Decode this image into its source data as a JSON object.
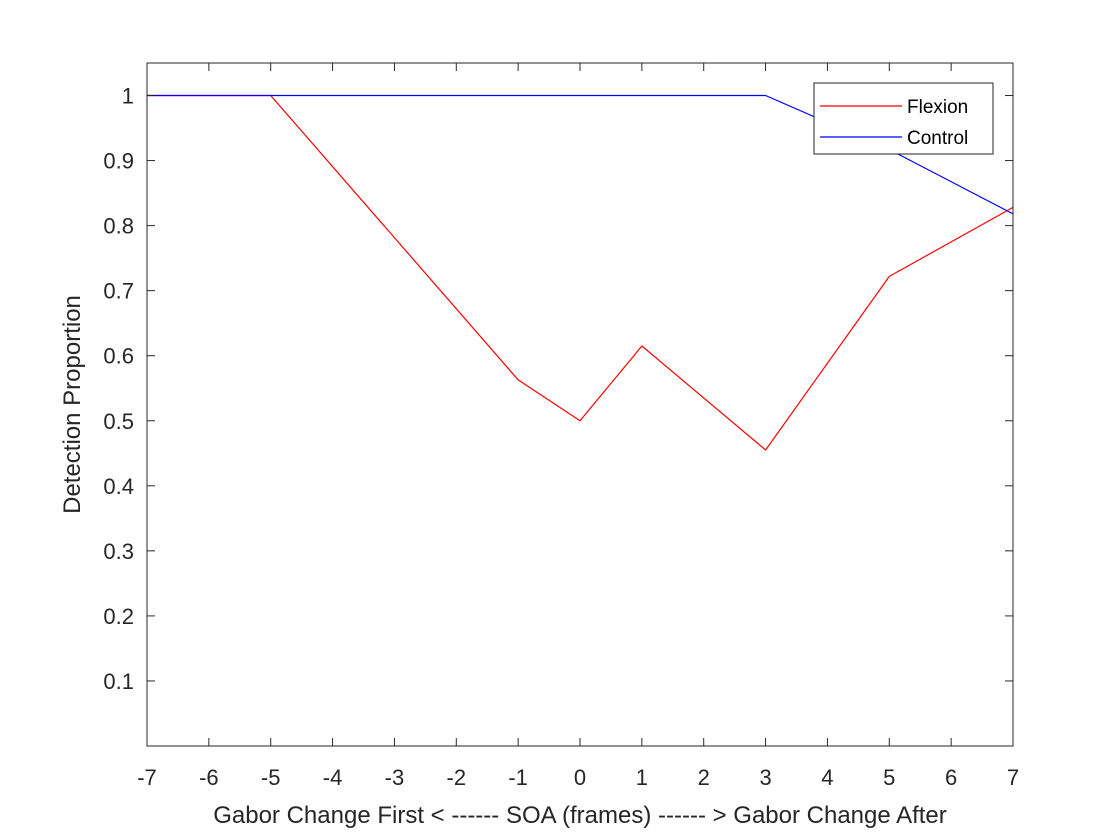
{
  "chart_data": {
    "type": "line",
    "title": "",
    "xlabel": "Gabor Change First < ------ SOA (frames) ------ > Gabor Change After",
    "ylabel": "Detection Proportion",
    "xlim": [
      -7,
      7
    ],
    "ylim": [
      0,
      1.05
    ],
    "x_ticks": [
      -7,
      -6,
      -5,
      -4,
      -3,
      -2,
      -1,
      0,
      1,
      2,
      3,
      4,
      5,
      6,
      7
    ],
    "y_ticks": [
      0.1,
      0.2,
      0.3,
      0.4,
      0.5,
      0.6,
      0.7,
      0.8,
      0.9,
      1
    ],
    "x_tick_labels": [
      "-7",
      "-6",
      "-5",
      "-4",
      "-3",
      "-2",
      "-1",
      "0",
      "1",
      "2",
      "3",
      "4",
      "5",
      "6",
      "7"
    ],
    "y_tick_labels": [
      "0.1",
      "0.2",
      "0.3",
      "0.4",
      "0.5",
      "0.6",
      "0.7",
      "0.8",
      "0.9",
      "1"
    ],
    "grid": false,
    "legend_position": "top-right",
    "series": [
      {
        "name": "Flexion",
        "color": "#ff0000",
        "x": [
          -7,
          -5,
          -1,
          0,
          1,
          3,
          5,
          7
        ],
        "y": [
          1.0,
          1.0,
          0.563,
          0.5,
          0.615,
          0.455,
          0.722,
          0.828
        ]
      },
      {
        "name": "Control",
        "color": "#0000ff",
        "x": [
          -7,
          -5,
          -1,
          0,
          1,
          3,
          5,
          7
        ],
        "y": [
          1.0,
          1.0,
          1.0,
          1.0,
          1.0,
          1.0,
          0.917,
          0.818
        ]
      }
    ]
  }
}
